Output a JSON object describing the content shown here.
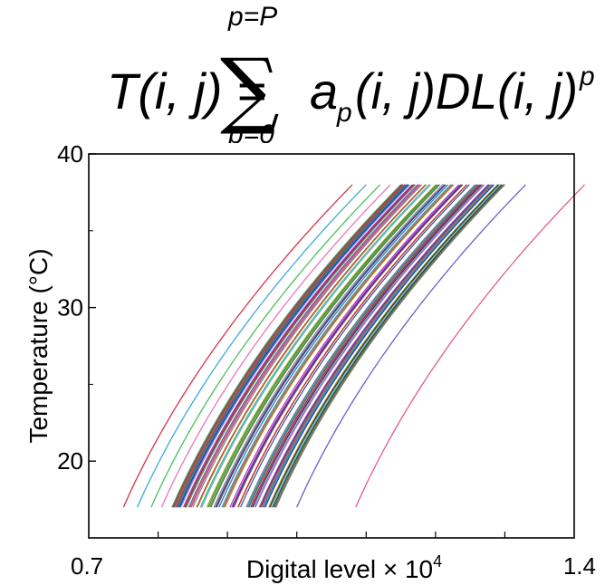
{
  "formula": {
    "lhs": "T(i, j) =",
    "sum_upper": "p=P",
    "sum_symbol": "∑",
    "sum_lower": "p=0",
    "rhs_a": "a",
    "rhs_a_sub": "p",
    "rhs_rest": "(i, j)DL(i, j)",
    "rhs_exp": "p"
  },
  "chart_data": {
    "type": "line",
    "title": "",
    "xlabel": "Digital level × 10",
    "xlabel_exp": "4",
    "ylabel": "Temperature (°C)",
    "xlim": [
      0.7,
      1.4
    ],
    "ylim": [
      15,
      40
    ],
    "xticks": [
      "0.7",
      "1.4"
    ],
    "yticks": [
      {
        "value": 20,
        "label": "20"
      },
      {
        "value": 30,
        "label": "30"
      },
      {
        "value": 40,
        "label": "40"
      }
    ],
    "grid": false,
    "legend": "none",
    "curve_shape": {
      "y_start": 17,
      "y_end": 38,
      "x_span": 0.33
    },
    "bundle": {
      "x_start_min": 0.82,
      "x_start_max": 0.97,
      "count": 130
    },
    "outliers": [
      {
        "x_start": 0.75,
        "color": "#d6334d"
      },
      {
        "x_start": 0.77,
        "color": "#3fa8dc"
      },
      {
        "x_start": 0.79,
        "color": "#4bbf5a"
      },
      {
        "x_start": 0.805,
        "color": "#e57ab8"
      },
      {
        "x_start": 1.0,
        "color": "#6b5fc9"
      },
      {
        "x_start": 1.085,
        "color": "#e0607e"
      }
    ],
    "palette": [
      "#1f3fbf",
      "#2a8a2a",
      "#c23a3a",
      "#20a0a0",
      "#b030b0",
      "#a0a020",
      "#303030",
      "#6060d0",
      "#e08020",
      "#40b060",
      "#d05090",
      "#5090e0",
      "#8a5a2a",
      "#70c0d0",
      "#9a2060",
      "#7a7a7a"
    ]
  }
}
